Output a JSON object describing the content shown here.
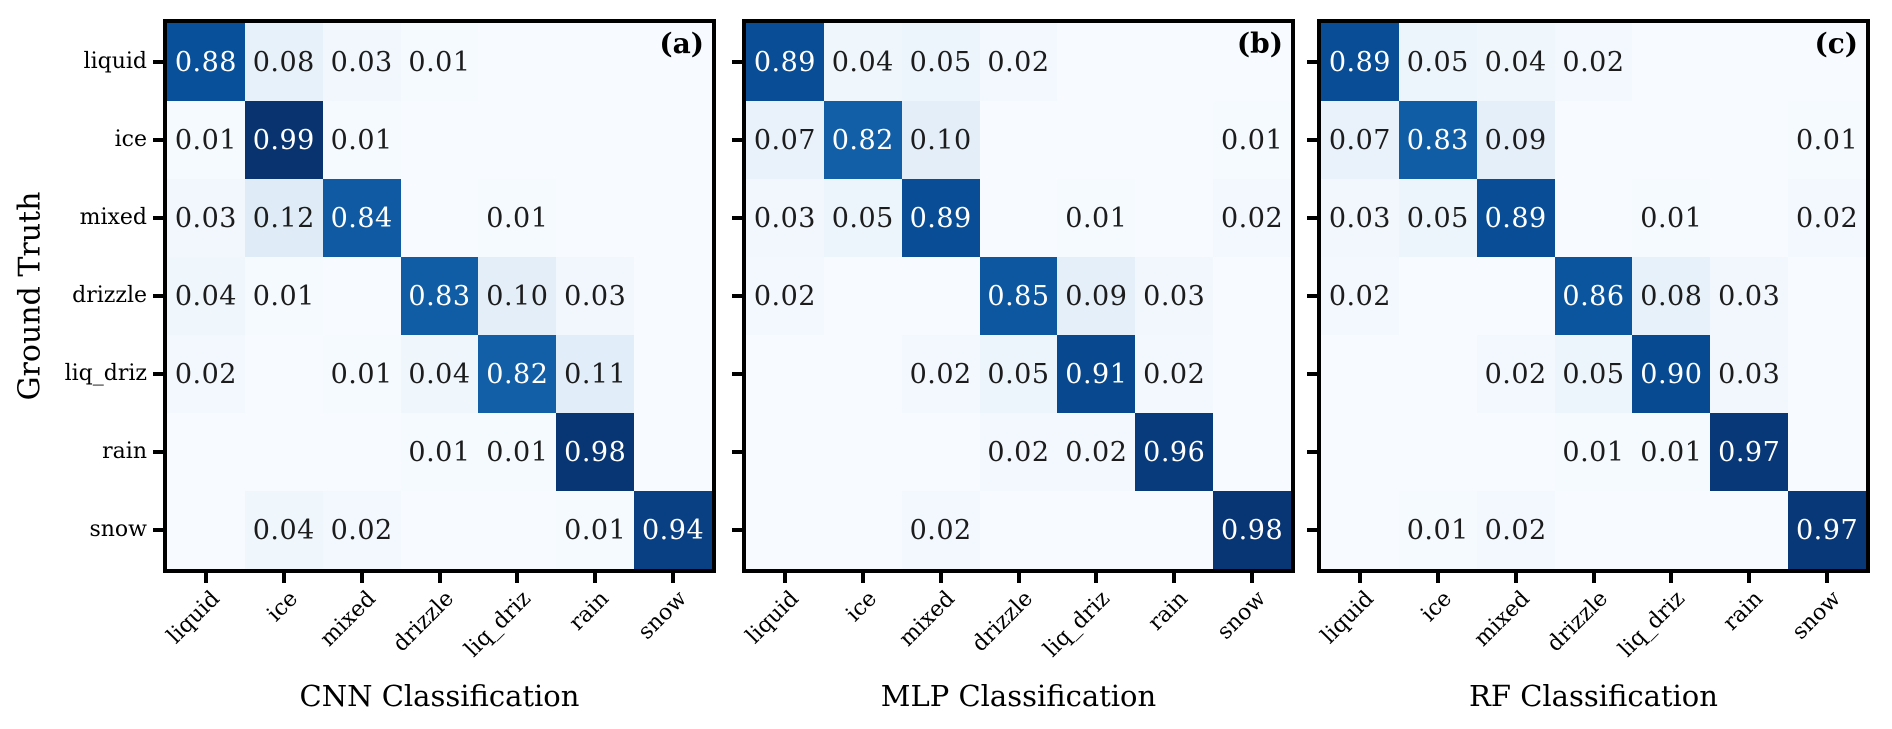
{
  "chart_data": {
    "type": "heatmap",
    "subtype": "confusion-matrix-triptych",
    "colormap": "Blues",
    "value_range": [
      0,
      1
    ],
    "precision": 2,
    "grid": false,
    "ylabel": "Ground Truth",
    "categories": [
      "liquid",
      "ice",
      "mixed",
      "drizzle",
      "liq_driz",
      "rain",
      "snow"
    ],
    "colors": {
      "background": "#ffffff",
      "axis_border": "#000000",
      "cmap_low": "#f7fbff",
      "cmap_high": "#08306b",
      "cell_text_dark": "#1c1c1c",
      "cell_text_light": "#ffffff"
    },
    "panels": [
      {
        "tag": "(a)",
        "xlabel": "CNN Classification",
        "matrix": [
          [
            0.88,
            0.08,
            0.03,
            0.01,
            null,
            null,
            null
          ],
          [
            0.01,
            0.99,
            0.01,
            null,
            null,
            null,
            null
          ],
          [
            0.03,
            0.12,
            0.84,
            null,
            0.01,
            null,
            null
          ],
          [
            0.04,
            0.01,
            null,
            0.83,
            0.1,
            0.03,
            null
          ],
          [
            0.02,
            null,
            0.01,
            0.04,
            0.82,
            0.11,
            null
          ],
          [
            null,
            null,
            null,
            0.01,
            0.01,
            0.98,
            null
          ],
          [
            null,
            0.04,
            0.02,
            null,
            null,
            0.01,
            0.94
          ]
        ]
      },
      {
        "tag": "(b)",
        "xlabel": "MLP Classification",
        "matrix": [
          [
            0.89,
            0.04,
            0.05,
            0.02,
            null,
            null,
            null
          ],
          [
            0.07,
            0.82,
            0.1,
            null,
            null,
            null,
            0.01
          ],
          [
            0.03,
            0.05,
            0.89,
            null,
            0.01,
            null,
            0.02
          ],
          [
            0.02,
            null,
            null,
            0.85,
            0.09,
            0.03,
            null
          ],
          [
            null,
            null,
            0.02,
            0.05,
            0.91,
            0.02,
            null
          ],
          [
            null,
            null,
            null,
            0.02,
            0.02,
            0.96,
            null
          ],
          [
            null,
            null,
            0.02,
            null,
            null,
            null,
            0.98
          ]
        ]
      },
      {
        "tag": "(c)",
        "xlabel": "RF Classification",
        "matrix": [
          [
            0.89,
            0.05,
            0.04,
            0.02,
            null,
            null,
            null
          ],
          [
            0.07,
            0.83,
            0.09,
            null,
            null,
            null,
            0.01
          ],
          [
            0.03,
            0.05,
            0.89,
            null,
            0.01,
            null,
            0.02
          ],
          [
            0.02,
            null,
            null,
            0.86,
            0.08,
            0.03,
            null
          ],
          [
            null,
            null,
            0.02,
            0.05,
            0.9,
            0.03,
            null
          ],
          [
            null,
            null,
            null,
            0.01,
            0.01,
            0.97,
            null
          ],
          [
            null,
            0.01,
            0.02,
            null,
            null,
            null,
            0.97
          ]
        ]
      }
    ]
  }
}
